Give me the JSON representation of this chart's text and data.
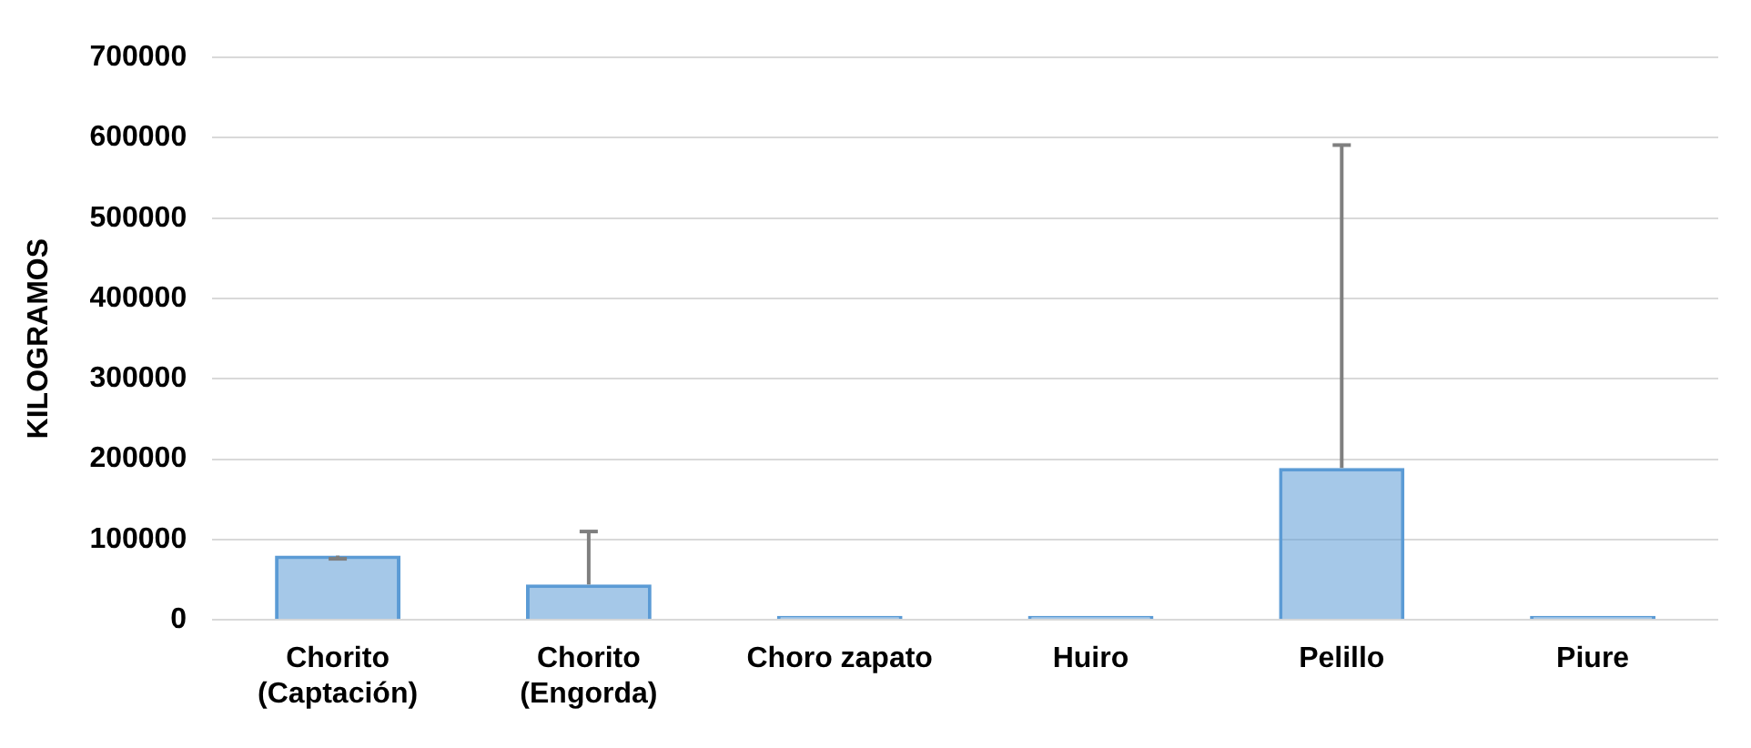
{
  "chart_data": {
    "type": "bar",
    "ylabel": "KILOGRAMOS",
    "categories": [
      "Chorito\n(Captación)",
      "Chorito\n(Engorda)",
      "Choro zapato",
      "Huiro",
      "Pelillo",
      "Piure"
    ],
    "values": [
      80000,
      44000,
      5000,
      5000,
      189000,
      5000
    ],
    "errors": [
      [
        76000,
        80000
      ],
      [
        44000,
        110000
      ],
      null,
      null,
      [
        189000,
        591000
      ],
      null
    ],
    "color": "#5b9bd5",
    "ylim": [
      0,
      700000
    ],
    "yticks": [
      0,
      100000,
      200000,
      300000,
      400000,
      500000,
      600000,
      700000
    ],
    "grid": "y",
    "legend": false
  }
}
